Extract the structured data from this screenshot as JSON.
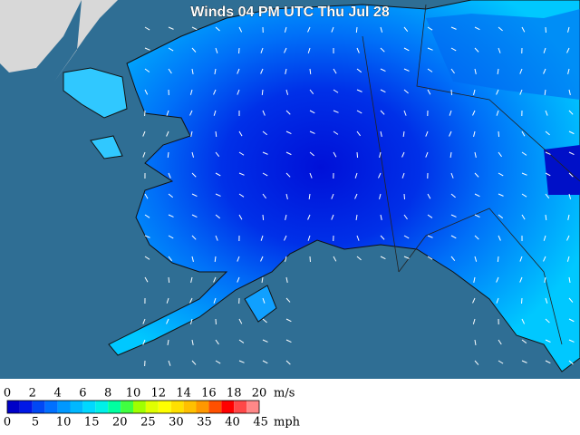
{
  "title": "Winds 04 PM UTC Thu Jul 28",
  "legend": {
    "colors": [
      "#0000c8",
      "#0018e6",
      "#0048f4",
      "#0070ff",
      "#0098ff",
      "#00b8ff",
      "#00d8ff",
      "#00f0e8",
      "#00ffa0",
      "#40ff40",
      "#a0ff00",
      "#e0ff00",
      "#ffff00",
      "#ffe000",
      "#ffc000",
      "#ff9800",
      "#ff5000",
      "#ff0000",
      "#ff4848",
      "#ff8888"
    ],
    "ms_labels": [
      0,
      2,
      4,
      6,
      8,
      10,
      12,
      14,
      16,
      18,
      20
    ],
    "ms_unit": "m/s",
    "mph_labels": [
      0,
      5,
      10,
      15,
      20,
      25,
      30,
      35,
      40,
      45
    ],
    "mph_unit": "mph"
  }
}
